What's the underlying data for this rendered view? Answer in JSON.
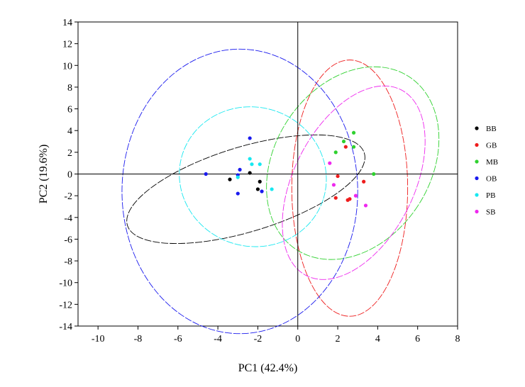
{
  "chart_data": {
    "type": "scatter",
    "title": "",
    "xlabel": "PC1 (42.4%)",
    "ylabel": "PC2 (19.6%)",
    "xlim": [
      -11,
      8
    ],
    "ylim": [
      -14,
      14
    ],
    "xticks": [
      -10,
      -8,
      -6,
      -4,
      -2,
      0,
      2,
      4,
      6,
      8
    ],
    "yticks": [
      -14,
      -12,
      -10,
      -8,
      -6,
      -4,
      -2,
      0,
      2,
      4,
      6,
      8,
      10,
      12,
      14
    ],
    "grid": false,
    "zero_lines": true,
    "legend_position": "right",
    "series": [
      {
        "name": "BB",
        "color": "#000000",
        "points": [
          [
            -3.4,
            -0.5
          ],
          [
            -2.4,
            0.1
          ],
          [
            -1.9,
            -0.7
          ],
          [
            -2.0,
            -1.4
          ]
        ],
        "ellipse": {
          "center": [
            -2.6,
            -1.4
          ],
          "semi_axes": [
            6.2,
            3.9
          ],
          "angle_deg": -17
        }
      },
      {
        "name": "GB",
        "color": "#ee1c1c",
        "points": [
          [
            2.4,
            2.5
          ],
          [
            2.0,
            -0.2
          ],
          [
            3.3,
            -0.7
          ],
          [
            1.9,
            -2.2
          ],
          [
            2.6,
            -2.3
          ],
          [
            2.5,
            -2.4
          ]
        ],
        "ellipse": {
          "center": [
            2.6,
            -1.3
          ],
          "semi_axes": [
            2.9,
            11.8
          ],
          "angle_deg": 0
        }
      },
      {
        "name": "MB",
        "color": "#2fd12f",
        "points": [
          [
            2.3,
            3.0
          ],
          [
            2.8,
            3.8
          ],
          [
            1.9,
            2.0
          ],
          [
            2.8,
            2.5
          ],
          [
            3.8,
            0.0
          ]
        ],
        "ellipse": {
          "center": [
            2.75,
            1.0
          ],
          "semi_axes": [
            3.9,
            9.5
          ],
          "angle_deg": 33
        }
      },
      {
        "name": "OB",
        "color": "#1a1aee",
        "points": [
          [
            -4.6,
            0.0
          ],
          [
            -2.4,
            3.3
          ],
          [
            -2.9,
            0.4
          ],
          [
            -3.0,
            -0.1
          ],
          [
            -1.8,
            -1.6
          ],
          [
            -3.0,
            -1.8
          ]
        ],
        "ellipse": {
          "center": [
            -2.9,
            -1.6
          ],
          "semi_axes": [
            5.9,
            13.1
          ],
          "angle_deg": 0
        }
      },
      {
        "name": "PB",
        "color": "#18e8f0",
        "points": [
          [
            -2.4,
            1.4
          ],
          [
            -2.3,
            0.9
          ],
          [
            -1.9,
            0.9
          ],
          [
            -3.0,
            -0.3
          ],
          [
            -1.3,
            -1.4
          ]
        ],
        "ellipse": {
          "center": [
            -2.25,
            -0.25
          ],
          "semi_axes": [
            3.7,
            6.4
          ],
          "angle_deg": 18
        }
      },
      {
        "name": "SB",
        "color": "#ee28ee",
        "points": [
          [
            1.6,
            1.0
          ],
          [
            1.8,
            -1.0
          ],
          [
            2.9,
            -2.0
          ],
          [
            3.4,
            -2.9
          ]
        ],
        "ellipse": {
          "center": [
            2.8,
            -0.8
          ],
          "semi_axes": [
            3.0,
            9.6
          ],
          "angle_deg": 27
        }
      }
    ]
  }
}
